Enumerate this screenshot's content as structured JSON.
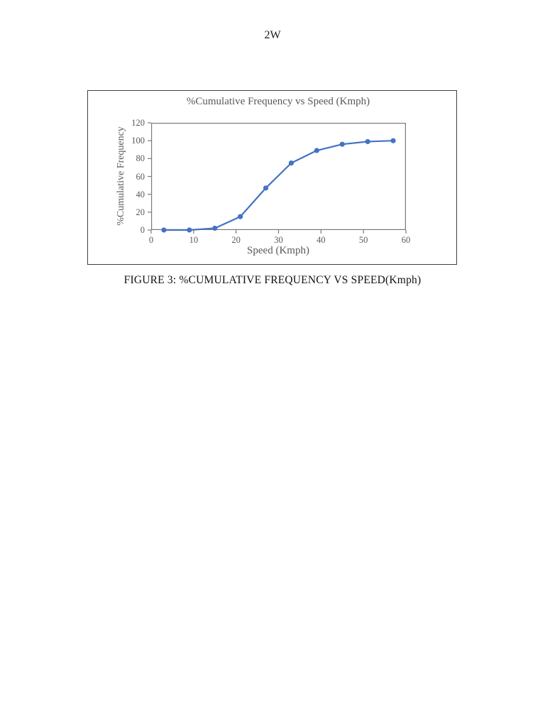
{
  "page": {
    "header": "2W",
    "caption": "FIGURE 3: %CUMULATIVE FREQUENCY VS SPEED(Kmph)"
  },
  "chart_data": {
    "type": "line",
    "title": "%Cumulative Frequency vs Speed (Kmph)",
    "xlabel": "Speed (Kmph)",
    "ylabel": "%Cumulative Frequency",
    "x": [
      3,
      9,
      15,
      21,
      27,
      33,
      39,
      45,
      51,
      57
    ],
    "y": [
      0,
      0,
      2,
      15,
      47,
      75,
      89,
      96,
      99,
      100
    ],
    "xlim": [
      0,
      60
    ],
    "ylim": [
      0,
      120
    ],
    "xticks": [
      0,
      10,
      20,
      30,
      40,
      50,
      60
    ],
    "yticks": [
      0,
      20,
      40,
      60,
      80,
      100,
      120
    ],
    "grid": false,
    "legend": "none",
    "marker": "circle",
    "line_color": "#4472C4"
  },
  "colors": {
    "line": "#4472C4",
    "axis": "#7a7a7a",
    "chart_text": "#595959",
    "frame": "#3f3f3f",
    "caption": "#111111"
  }
}
